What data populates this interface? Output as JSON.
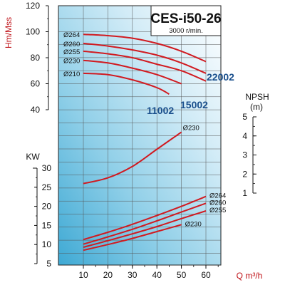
{
  "chart_data": {
    "type": "line",
    "title": "CES-i50-26",
    "subtitle": "3000 r/min.",
    "xlabel": "Q m³/h",
    "x_ticks": [
      10,
      20,
      30,
      40,
      50,
      60
    ],
    "xlim": [
      10,
      65
    ],
    "head_axis": {
      "label": "Hm/Mss",
      "ticks": [
        40,
        60,
        80,
        100,
        120
      ],
      "lim": [
        40,
        120
      ]
    },
    "power_axis": {
      "label": "KW",
      "ticks": [
        5,
        10,
        15,
        20,
        25,
        30
      ],
      "lim": [
        5,
        30
      ]
    },
    "npsh_axis": {
      "label": "NPSH",
      "unit": "(m)",
      "ticks": [
        1,
        2,
        3,
        4,
        5
      ],
      "lim": [
        1,
        5
      ]
    },
    "model_labels": [
      {
        "text": "22002",
        "near": "Ø264"
      },
      {
        "text": "15002",
        "near": "Ø230"
      },
      {
        "text": "11002",
        "near": "Ø210"
      }
    ],
    "head_curves": [
      {
        "name": "Ø264",
        "x": [
          10,
          20,
          30,
          40,
          50,
          60
        ],
        "y": [
          98,
          97,
          95,
          91,
          85,
          77
        ]
      },
      {
        "name": "Ø260",
        "x": [
          10,
          20,
          30,
          40,
          50,
          60
        ],
        "y": [
          91,
          89,
          86,
          82,
          76,
          68
        ]
      },
      {
        "name": "Ø255",
        "x": [
          10,
          20,
          30,
          40,
          50,
          60
        ],
        "y": [
          85,
          83,
          80,
          75,
          70,
          62
        ]
      },
      {
        "name": "Ø230",
        "x": [
          10,
          20,
          30,
          40,
          50
        ],
        "y": [
          78,
          76,
          72,
          67,
          60
        ]
      },
      {
        "name": "Ø210",
        "x": [
          10,
          20,
          30,
          40,
          45
        ],
        "y": [
          68,
          67,
          63,
          57,
          52
        ]
      }
    ],
    "npsh_curve": {
      "name": "Ø230",
      "x": [
        10,
        20,
        30,
        40,
        50
      ],
      "y": [
        1.5,
        1.8,
        2.4,
        3.3,
        4.2
      ]
    },
    "power_curves": [
      {
        "name": "Ø264",
        "x": [
          10,
          20,
          30,
          40,
          50,
          60
        ],
        "y": [
          11.3,
          13.2,
          15.3,
          17.6,
          20.0,
          22.6
        ]
      },
      {
        "name": "Ø260",
        "x": [
          10,
          20,
          30,
          40,
          50,
          60
        ],
        "y": [
          10.1,
          12.0,
          14.0,
          16.2,
          18.5,
          20.8
        ]
      },
      {
        "name": "Ø255",
        "x": [
          10,
          20,
          30,
          40,
          50,
          60
        ],
        "y": [
          9.3,
          11.0,
          12.8,
          14.7,
          16.8,
          18.8
        ]
      },
      {
        "name": "Ø230",
        "x": [
          10,
          20,
          30,
          40,
          50
        ],
        "y": [
          8.5,
          10.0,
          11.6,
          13.4,
          15.2
        ]
      }
    ]
  }
}
